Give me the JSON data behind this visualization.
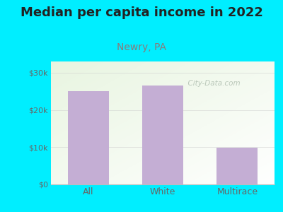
{
  "title": "Median per capita income in 2022",
  "subtitle": "Newry, PA",
  "categories": [
    "All",
    "White",
    "Multirace"
  ],
  "values": [
    25000,
    26500,
    9800
  ],
  "bar_color": "#c4aed4",
  "background_color": "#00eeff",
  "plot_bg_color_topleft": "#ddf0d8",
  "plot_bg_color_right": "#f8fff8",
  "plot_bg_color_bottom": "#ffffff",
  "title_fontsize": 13,
  "title_color": "#222222",
  "subtitle_fontsize": 10,
  "subtitle_color": "#8a7a7a",
  "tick_label_color": "#666666",
  "ytick_labels": [
    "$0",
    "$10k",
    "$20k",
    "$30k"
  ],
  "ytick_values": [
    0,
    10000,
    20000,
    30000
  ],
  "ylim": [
    0,
    33000
  ],
  "watermark": "City-Data.com",
  "watermark_color": "#b0bfb0"
}
